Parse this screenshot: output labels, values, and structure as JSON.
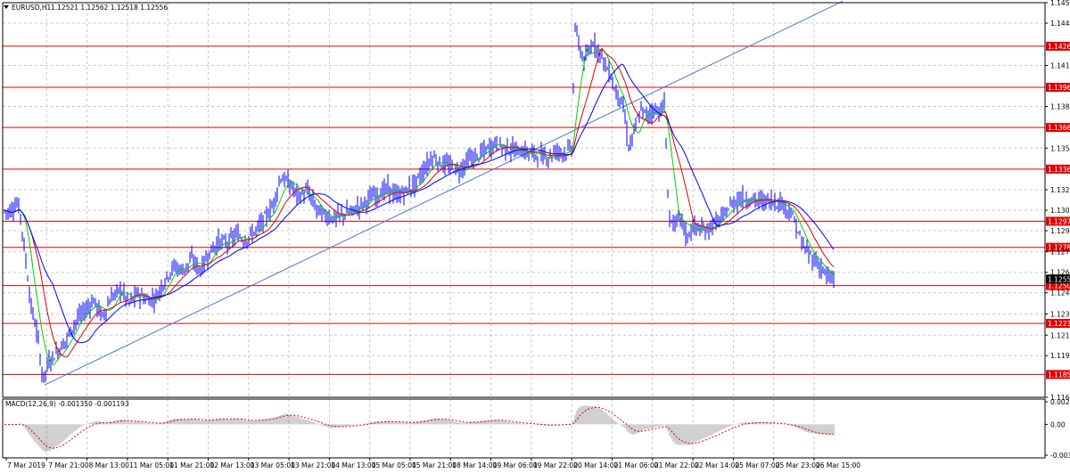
{
  "window": {
    "symbol_label": "EURUSD,H1",
    "quotes": "1.12521 1.12562 1.12518 1.12556",
    "menu_icon": "triangle-down-icon"
  },
  "indicator": {
    "label": "MACD(12,26,9) -0.001350 -0.001193"
  },
  "colors": {
    "candles": "#0000ff",
    "grid": "#c8c8c8",
    "levels": "#e00000",
    "trendline": "#4a7bd0",
    "ma_fast": "#00cc00",
    "ma_mid": "#e00000",
    "ma_slow": "#0000ff",
    "macd_hist": "#a0a0a0",
    "macd_signal": "#e00000",
    "current_price_bg": "#000000"
  },
  "chart_data": {
    "type": "candlestick",
    "symbol": "EURUSD",
    "timeframe": "H1",
    "price_axis_ticks": [
      "1.14580",
      "1.14430",
      "1.14120",
      "1.13820",
      "1.13515",
      "1.13210",
      "1.13060",
      "1.12910",
      "1.12755",
      "1.12605",
      "1.12455",
      "1.12300",
      "1.12145",
      "1.11995",
      "1.11690"
    ],
    "price_levels": [
      {
        "value": 1.14261,
        "label": "1.14261"
      },
      {
        "value": 1.1396,
        "label": "1.13960"
      },
      {
        "value": 1.13666,
        "label": "1.13666"
      },
      {
        "value": 1.13361,
        "label": "1.13361"
      },
      {
        "value": 1.12979,
        "label": "1.12979"
      },
      {
        "value": 1.12788,
        "label": "1.12788"
      },
      {
        "value": 1.12508,
        "label": "1.12508"
      },
      {
        "value": 1.12231,
        "label": "1.12231"
      },
      {
        "value": 1.11857,
        "label": "1.11857"
      }
    ],
    "current_price": {
      "value": 1.12556,
      "label": "1.12556"
    },
    "time_labels": [
      "7 Mar 2019",
      "7 Mar 21:00",
      "8 Mar 13:00",
      "11 Mar 05:00",
      "11 Mar 21:00",
      "12 Mar 13:00",
      "13 Mar 05:00",
      "13 Mar 21:00",
      "14 Mar 13:00",
      "15 Mar 05:00",
      "15 Mar 21:00",
      "18 Mar 14:00",
      "19 Mar 06:00",
      "19 Mar 22:00",
      "20 Mar 14:00",
      "21 Mar 06:00",
      "21 Mar 22:00",
      "22 Mar 14:00",
      "25 Mar 07:00",
      "25 Mar 23:00",
      "26 Mar 15:00"
    ],
    "close_path": [
      [
        0,
        1.1306
      ],
      [
        10,
        1.1305
      ],
      [
        20,
        1.1311
      ],
      [
        23,
        1.1302
      ],
      [
        28,
        1.1274
      ],
      [
        35,
        1.1235
      ],
      [
        42,
        1.1215
      ],
      [
        48,
        1.1182
      ],
      [
        55,
        1.1195
      ],
      [
        65,
        1.1203
      ],
      [
        75,
        1.1212
      ],
      [
        85,
        1.1225
      ],
      [
        95,
        1.1232
      ],
      [
        105,
        1.124
      ],
      [
        115,
        1.1228
      ],
      [
        125,
        1.1242
      ],
      [
        135,
        1.1248
      ],
      [
        145,
        1.1238
      ],
      [
        155,
        1.1245
      ],
      [
        165,
        1.124
      ],
      [
        175,
        1.1242
      ],
      [
        185,
        1.1255
      ],
      [
        195,
        1.1265
      ],
      [
        205,
        1.1262
      ],
      [
        215,
        1.127
      ],
      [
        225,
        1.1262
      ],
      [
        235,
        1.1275
      ],
      [
        245,
        1.1283
      ],
      [
        255,
        1.1282
      ],
      [
        265,
        1.1288
      ],
      [
        275,
        1.1284
      ],
      [
        285,
        1.129
      ],
      [
        295,
        1.1298
      ],
      [
        305,
        1.1308
      ],
      [
        315,
        1.133
      ],
      [
        325,
        1.1325
      ],
      [
        335,
        1.1316
      ],
      [
        345,
        1.132
      ],
      [
        355,
        1.1307
      ],
      [
        365,
        1.1302
      ],
      [
        375,
        1.13
      ],
      [
        385,
        1.1303
      ],
      [
        395,
        1.1305
      ],
      [
        405,
        1.131
      ],
      [
        415,
        1.1315
      ],
      [
        425,
        1.1318
      ],
      [
        435,
        1.1322
      ],
      [
        445,
        1.1316
      ],
      [
        455,
        1.132
      ],
      [
        465,
        1.1325
      ],
      [
        475,
        1.1335
      ],
      [
        485,
        1.1345
      ],
      [
        495,
        1.134
      ],
      [
        505,
        1.1338
      ],
      [
        515,
        1.1335
      ],
      [
        525,
        1.1343
      ],
      [
        535,
        1.1345
      ],
      [
        545,
        1.135
      ],
      [
        555,
        1.1355
      ],
      [
        565,
        1.1352
      ],
      [
        575,
        1.135
      ],
      [
        585,
        1.1349
      ],
      [
        595,
        1.1348
      ],
      [
        605,
        1.1346
      ],
      [
        615,
        1.1345
      ],
      [
        625,
        1.135
      ],
      [
        635,
        1.1348
      ],
      [
        641,
        1.1352
      ],
      [
        645,
        1.144
      ],
      [
        650,
        1.1425
      ],
      [
        655,
        1.1415
      ],
      [
        660,
        1.142
      ],
      [
        665,
        1.143
      ],
      [
        670,
        1.1424
      ],
      [
        675,
        1.142
      ],
      [
        680,
        1.141
      ],
      [
        685,
        1.1405
      ],
      [
        690,
        1.1392
      ],
      [
        695,
        1.139
      ],
      [
        700,
        1.1378
      ],
      [
        705,
        1.1352
      ],
      [
        710,
        1.136
      ],
      [
        715,
        1.1372
      ],
      [
        720,
        1.138
      ],
      [
        725,
        1.1375
      ],
      [
        730,
        1.1378
      ],
      [
        735,
        1.138
      ],
      [
        740,
        1.1378
      ],
      [
        745,
        1.1385
      ],
      [
        750,
        1.1302
      ],
      [
        755,
        1.1296
      ],
      [
        760,
        1.1298
      ],
      [
        765,
        1.13
      ],
      [
        770,
        1.1285
      ],
      [
        775,
        1.1292
      ],
      [
        780,
        1.1294
      ],
      [
        790,
        1.129
      ],
      [
        800,
        1.1296
      ],
      [
        810,
        1.13
      ],
      [
        820,
        1.131
      ],
      [
        830,
        1.1315
      ],
      [
        840,
        1.1314
      ],
      [
        850,
        1.1313
      ],
      [
        860,
        1.1313
      ],
      [
        870,
        1.1312
      ],
      [
        880,
        1.131
      ],
      [
        890,
        1.13
      ],
      [
        900,
        1.128
      ],
      [
        910,
        1.1272
      ],
      [
        920,
        1.1265
      ],
      [
        930,
        1.1255
      ],
      [
        935,
        1.1256
      ]
    ],
    "macd_axis_ticks": [
      "0.002467",
      "0.00",
      "-0.003359"
    ]
  }
}
